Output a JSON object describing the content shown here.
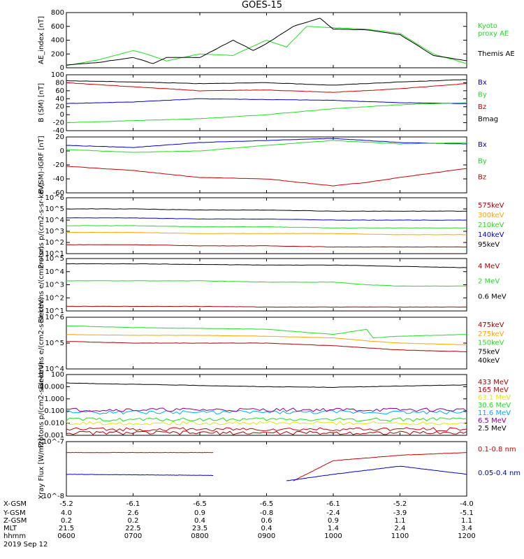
{
  "title": "GOES-15",
  "date": "2019 Sep 12",
  "colors": {
    "red": "#cc0000",
    "green": "#22dd22",
    "blue": "#0000cc",
    "black": "#000000",
    "orange": "#ffa500",
    "yellow": "#e6e600",
    "cyan": "#00aaff",
    "purple": "#880088",
    "darkred": "#990000",
    "maroon": "#aa0000"
  },
  "x_ticks": {
    "X-GSM": [
      "-5.2",
      "-6.1",
      "-6.5",
      "-6.5",
      "-6.1",
      "-5.2",
      "-4.0"
    ],
    "Y-GSM": [
      "4.0",
      "2.6",
      "0.9",
      "-0.8",
      "-2.4",
      "-3.9",
      "-5.1"
    ],
    "Z-GSM": [
      "0.2",
      "0.2",
      "0.4",
      "0.6",
      "0.9",
      "1.1",
      "1.1"
    ],
    "MLT": [
      "21.5",
      "22.5",
      "23.5",
      "0.4",
      "1.4",
      "2.4",
      "3.4"
    ],
    "hhmm": [
      "0600",
      "0700",
      "0800",
      "0900",
      "1000",
      "1100",
      "1200"
    ]
  },
  "chart_data": [
    {
      "type": "line",
      "title": "GOES-15",
      "ylabel": "AE_index [nT]",
      "ylim": [
        0,
        800
      ],
      "yticks": [
        "0",
        "200",
        "400",
        "600",
        "800"
      ],
      "xlim": [
        0,
        6
      ],
      "legend": [
        "Kyoto proxy AE",
        "Themis AE"
      ],
      "series": [
        {
          "name": "Kyoto proxy AE",
          "color": "#22dd22",
          "x": [
            0,
            0.5,
            1,
            1.2,
            1.5,
            2,
            2.5,
            3,
            3.3,
            3.6,
            4,
            4.5,
            5,
            5.5,
            6
          ],
          "values": [
            30,
            120,
            250,
            200,
            100,
            200,
            180,
            400,
            300,
            600,
            580,
            560,
            500,
            200,
            60
          ]
        },
        {
          "name": "Themis AE",
          "color": "#000000",
          "x": [
            0,
            0.5,
            1,
            1.3,
            1.5,
            2,
            2.5,
            2.8,
            3,
            3.4,
            3.8,
            4,
            4.5,
            5,
            5.5,
            6
          ],
          "values": [
            40,
            80,
            150,
            60,
            150,
            150,
            400,
            250,
            350,
            600,
            720,
            560,
            550,
            480,
            180,
            100
          ]
        }
      ]
    },
    {
      "type": "line",
      "ylabel": "B (SM) [nT]",
      "ylim": [
        -40,
        100
      ],
      "yticks": [
        "-40",
        "-20",
        "0",
        "20",
        "40",
        "60",
        "80",
        "100"
      ],
      "xlim": [
        0,
        6
      ],
      "legend": [
        "Bx",
        "By",
        "Bz",
        "Bmag"
      ],
      "series": [
        {
          "name": "Bx",
          "color": "#0000cc",
          "x": [
            0,
            1,
            2,
            3,
            4,
            5,
            6
          ],
          "values": [
            28,
            32,
            40,
            38,
            36,
            30,
            28
          ]
        },
        {
          "name": "By",
          "color": "#22dd22",
          "x": [
            0,
            1,
            2,
            3,
            4,
            5,
            6
          ],
          "values": [
            -20,
            -15,
            -10,
            0,
            15,
            25,
            30
          ]
        },
        {
          "name": "Bz",
          "color": "#cc0000",
          "x": [
            0,
            1,
            2,
            3,
            4,
            5,
            6
          ],
          "values": [
            80,
            70,
            60,
            62,
            56,
            65,
            78
          ]
        },
        {
          "name": "Bmag",
          "color": "#000000",
          "x": [
            0,
            1,
            2,
            3,
            4,
            5,
            6
          ],
          "values": [
            85,
            82,
            78,
            80,
            74,
            82,
            88
          ]
        }
      ]
    },
    {
      "type": "line",
      "ylabel": "B (SM)-IGRF [nT]",
      "ylim": [
        -60,
        20
      ],
      "yticks": [
        "-60",
        "-40",
        "-20",
        "0",
        "20"
      ],
      "xlim": [
        0,
        6
      ],
      "legend": [
        "Bx",
        "By",
        "Bz"
      ],
      "series": [
        {
          "name": "Bx",
          "color": "#0000cc",
          "x": [
            0,
            1,
            2,
            3,
            4,
            5,
            6
          ],
          "values": [
            8,
            5,
            12,
            15,
            18,
            12,
            10
          ]
        },
        {
          "name": "By",
          "color": "#22dd22",
          "x": [
            0,
            1,
            2,
            3,
            4,
            5,
            6
          ],
          "values": [
            2,
            -2,
            0,
            8,
            15,
            10,
            12
          ]
        },
        {
          "name": "Bz",
          "color": "#cc0000",
          "x": [
            0,
            1,
            2,
            3,
            4,
            4.5,
            5,
            6
          ],
          "values": [
            -22,
            -28,
            -38,
            -40,
            -50,
            -45,
            -38,
            -25
          ]
        }
      ]
    },
    {
      "type": "line",
      "ylabel": "Protons p/(cm2-s-sr-keV)",
      "yscale": "log",
      "ylim": [
        1,
        6
      ],
      "yticks": [
        "10^1",
        "10^2",
        "10^3",
        "10^4",
        "10^5",
        "10^6"
      ],
      "xlim": [
        0,
        6
      ],
      "legend": [
        "575keV",
        "300keV",
        "210keV",
        "140keV",
        "95keV"
      ],
      "series": [
        {
          "name": "575keV",
          "color": "#aa0000",
          "x": [
            0,
            1,
            2,
            3,
            4,
            5,
            6
          ],
          "values": [
            1.8,
            1.8,
            1.7,
            1.7,
            1.6,
            1.6,
            1.6
          ]
        },
        {
          "name": "300keV",
          "color": "#ffa500",
          "x": [
            0,
            1,
            2,
            3,
            4,
            5,
            6
          ],
          "values": [
            2.9,
            2.9,
            2.8,
            2.8,
            2.8,
            2.7,
            2.7
          ]
        },
        {
          "name": "210keV",
          "color": "#22dd22",
          "x": [
            0,
            1,
            2,
            3,
            4,
            5,
            6
          ],
          "values": [
            3.5,
            3.5,
            3.4,
            3.4,
            3.3,
            3.3,
            3.3
          ]
        },
        {
          "name": "140keV",
          "color": "#0000cc",
          "x": [
            0,
            1,
            2,
            3,
            4,
            5,
            6
          ],
          "values": [
            4.2,
            4.2,
            4.1,
            4.1,
            4.0,
            4.0,
            4.0
          ]
        },
        {
          "name": "95keV",
          "color": "#000000",
          "x": [
            0,
            1,
            2,
            3,
            4,
            5,
            6
          ],
          "values": [
            5.0,
            5.0,
            4.9,
            4.9,
            4.8,
            4.8,
            4.8
          ]
        }
      ]
    },
    {
      "type": "line",
      "ylabel": "Electrons e/(cm2-s-sr)",
      "yscale": "log",
      "ylim": [
        1,
        5
      ],
      "yticks": [
        "10^1",
        "10^2",
        "10^3",
        "10^4",
        "10^5"
      ],
      "xlim": [
        0,
        6
      ],
      "legend": [
        "4 MeV",
        "2 MeV",
        "0.6 MeV"
      ],
      "series": [
        {
          "name": "4 MeV",
          "color": "#aa0000",
          "x": [
            0,
            1,
            2,
            3,
            4,
            5,
            6
          ],
          "values": [
            1.35,
            1.35,
            1.35,
            1.3,
            1.3,
            1.3,
            1.3
          ]
        },
        {
          "name": "2 MeV",
          "color": "#22dd22",
          "x": [
            0,
            1,
            2,
            3,
            4,
            4.5,
            5,
            6
          ],
          "values": [
            3.3,
            3.3,
            3.3,
            3.2,
            3.2,
            3.0,
            2.9,
            2.9
          ]
        },
        {
          "name": "0.6 MeV",
          "color": "#000000",
          "x": [
            0,
            1,
            2,
            3,
            4,
            5,
            6
          ],
          "values": [
            4.6,
            4.6,
            4.55,
            4.5,
            4.5,
            4.4,
            4.3
          ]
        }
      ]
    },
    {
      "type": "line",
      "ylabel": "Electrons e/(cm2-s-sr-keV)",
      "yscale": "log",
      "ylim": [
        3,
        6
      ],
      "yticks": [
        "10^4",
        "10^5",
        "10^6"
      ],
      "xlim": [
        0,
        6
      ],
      "legend": [
        "475keV",
        "275keV",
        "150keV",
        "75keV",
        "40keV"
      ],
      "series": [
        {
          "name": "475keV",
          "color": "#aa0000",
          "x": [
            0,
            1,
            2,
            3,
            4,
            4.6,
            5,
            6
          ],
          "values": [
            4.6,
            4.5,
            4.5,
            4.5,
            4.35,
            4.2,
            4.1,
            4.0
          ]
        },
        {
          "name": "275keV",
          "color": "#ffa500",
          "x": [
            0,
            1,
            2,
            3,
            4,
            4.6,
            5,
            6
          ],
          "values": [
            5.0,
            4.95,
            4.95,
            4.9,
            4.8,
            4.6,
            4.5,
            4.4
          ]
        },
        {
          "name": "150keV",
          "color": "#22dd22",
          "x": [
            0,
            1,
            2,
            3,
            4,
            4.5,
            4.6,
            5,
            6
          ],
          "values": [
            5.5,
            5.4,
            5.35,
            5.3,
            5.0,
            5.3,
            4.8,
            4.9,
            5.0
          ]
        }
      ]
    },
    {
      "type": "line",
      "ylabel": "Protons p/(cm2-s-sr-keV)",
      "yscale": "log",
      "ylim": [
        -3,
        2
      ],
      "yticks": [
        "0.001",
        "0.010",
        "0.100",
        "1.000",
        "10.000",
        "100"
      ],
      "xlim": [
        0,
        6
      ],
      "legend": [
        "433 MeV",
        "165 MeV",
        "63.1 MeV",
        "30.6 MeV",
        "11.6 MeV",
        "6.5 MeV",
        "2.5 MeV"
      ],
      "series": [
        {
          "name": "433 MeV",
          "color": "#aa0000",
          "x": [
            0,
            6
          ],
          "values": [
            -2.8,
            -2.8
          ]
        },
        {
          "name": "165 MeV",
          "color": "#cc0000",
          "x": [
            0,
            6
          ],
          "values": [
            -2.5,
            -2.5
          ]
        },
        {
          "name": "63.1 MeV",
          "color": "#e6e600",
          "x": [
            0,
            6
          ],
          "values": [
            -2.0,
            -2.0
          ]
        },
        {
          "name": "30.6 MeV",
          "color": "#22dd22",
          "x": [
            0,
            6
          ],
          "values": [
            -1.7,
            -1.7
          ]
        },
        {
          "name": "11.6 MeV",
          "color": "#00aaff",
          "x": [
            0,
            6
          ],
          "values": [
            -1.1,
            -1.1
          ]
        },
        {
          "name": "6.5 MeV",
          "color": "#880088",
          "x": [
            0,
            6
          ],
          "values": [
            -0.9,
            -0.9
          ]
        },
        {
          "name": "2.5 MeV",
          "color": "#000000",
          "x": [
            0,
            1,
            2,
            3,
            4,
            5,
            6
          ],
          "values": [
            1.3,
            1.2,
            1.1,
            1.0,
            0.95,
            1.05,
            1.15
          ]
        }
      ]
    },
    {
      "type": "line",
      "ylabel": "Xray Flux [W/m2]",
      "yscale": "log",
      "ylim": [
        -8,
        -7
      ],
      "yticks": [
        "10^-8",
        "10^-7"
      ],
      "xlim": [
        0,
        6
      ],
      "legend": [
        "0.1-0.8 nm",
        "0.05-0.4 nm"
      ],
      "series": [
        {
          "name": "0.1-0.8 nm",
          "color": "#cc0000",
          "segments": [
            {
              "x": [
                0,
                2.2
              ],
              "values": [
                -7.2,
                -7.2
              ]
            },
            {
              "x": [
                3.4,
                4,
                5,
                6
              ],
              "values": [
                -7.72,
                -7.35,
                -7.25,
                -7.2
              ]
            }
          ]
        },
        {
          "name": "0.05-0.4 nm",
          "color": "#0000cc",
          "segments": [
            {
              "x": [
                0,
                2.2
              ],
              "values": [
                -7.6,
                -7.62
              ]
            },
            {
              "x": [
                3.3,
                4,
                5,
                6
              ],
              "values": [
                -7.72,
                -7.6,
                -7.45,
                -7.6
              ]
            }
          ]
        }
      ]
    }
  ]
}
